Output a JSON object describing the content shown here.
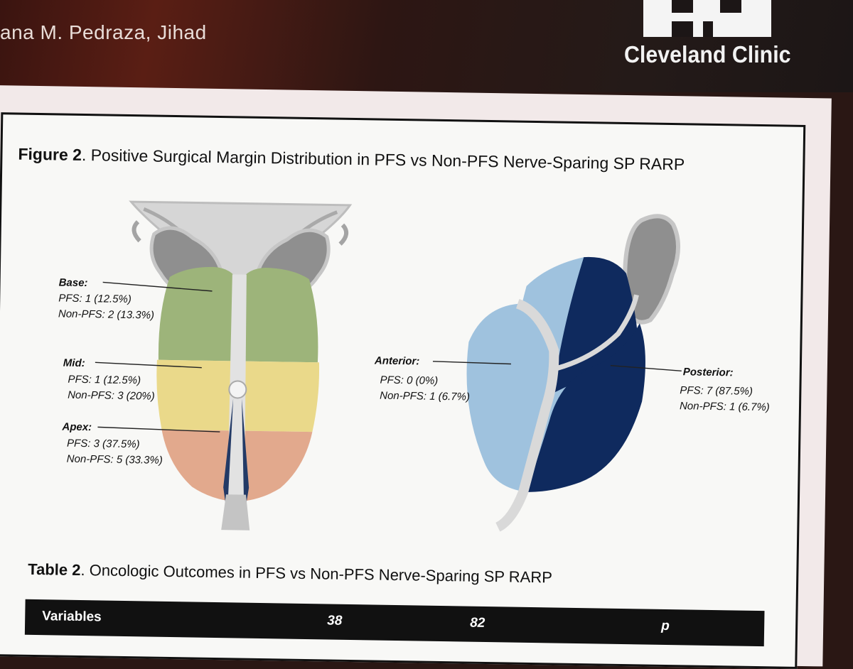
{
  "header": {
    "authors": "ana M. Pedraza, Jihad",
    "logo_text": "Cleveland Clinic"
  },
  "figure": {
    "label": "Figure 2",
    "title": ". Positive Surgical Margin Distribution in PFS vs Non-PFS Nerve-Sparing SP RARP",
    "zones": {
      "base": {
        "label": "Base:",
        "pfs": "PFS: 1 (12.5%)",
        "non_pfs": "Non-PFS: 2 (13.3%)"
      },
      "mid": {
        "label": "Mid:",
        "pfs": "PFS: 1 (12.5%)",
        "non_pfs": "Non-PFS: 3 (20%)"
      },
      "apex": {
        "label": "Apex:",
        "pfs": "PFS: 3 (37.5%)",
        "non_pfs": "Non-PFS: 5 (33.3%)"
      },
      "anterior": {
        "label": "Anterior:",
        "pfs": "PFS: 0 (0%)",
        "non_pfs": "Non-PFS: 1 (6.7%)"
      },
      "posterior": {
        "label": "Posterior:",
        "pfs": "PFS: 7 (87.5%)",
        "non_pfs": "Non-PFS: 1 (6.7%)"
      }
    },
    "colors": {
      "base": "#9db47a",
      "mid": "#ead98a",
      "apex": "#e2a98d",
      "anterior": "#9fc2de",
      "posterior": "#0f2a5e"
    }
  },
  "table": {
    "label": "Table 2",
    "title": ". Oncologic Outcomes in PFS vs Non-PFS Nerve-Sparing SP RARP",
    "headers": [
      "Variables",
      "38",
      "82",
      "p"
    ]
  }
}
